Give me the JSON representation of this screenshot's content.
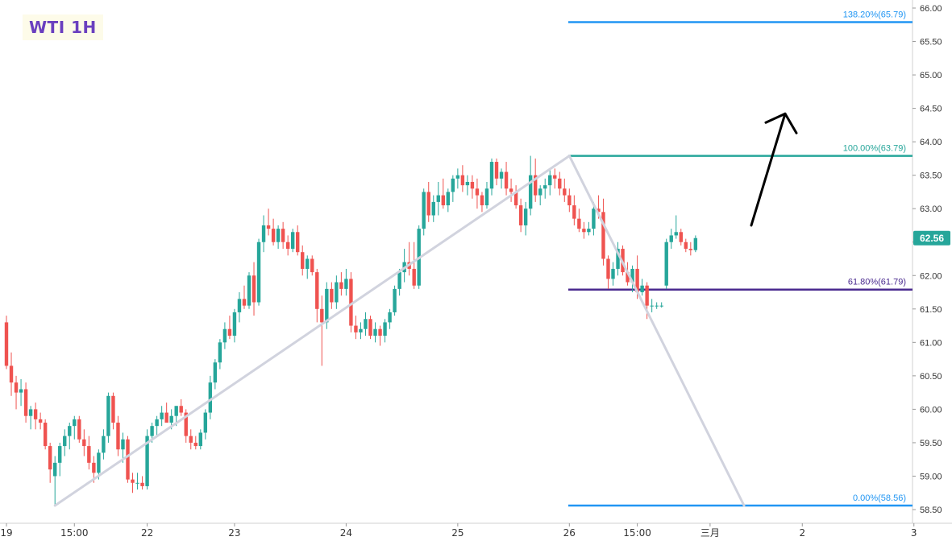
{
  "colors": {
    "up": "#26a69a",
    "down": "#ef5350",
    "title": "#6a3fbf",
    "fib_outer": "#2196f3",
    "fib_100": "#26a69a",
    "fib_618": "#4a2a8f",
    "trend": "#d1d3de",
    "arrow": "#000000",
    "price_tag": "#26a69a",
    "axis_text": "#333333"
  },
  "chart_data": {
    "type": "candlestick",
    "title": "WTI 1H",
    "y_axis": {
      "range": [
        58.25,
        66.1
      ],
      "ticks": [
        "66.00",
        "65.50",
        "65.00",
        "64.50",
        "64.00",
        "63.50",
        "63.00",
        "62.50",
        "62.00",
        "61.50",
        "61.00",
        "60.50",
        "60.00",
        "59.50",
        "59.00",
        "58.50"
      ],
      "side": "right"
    },
    "x_axis": {
      "ticks": [
        {
          "label": "19",
          "bar": 0
        },
        {
          "label": "15:00",
          "bar": 14
        },
        {
          "label": "22",
          "bar": 29
        },
        {
          "label": "23",
          "bar": 47
        },
        {
          "label": "24",
          "bar": 70
        },
        {
          "label": "25",
          "bar": 93
        },
        {
          "label": "26",
          "bar": 116
        },
        {
          "label": "15:00",
          "bar": 130
        },
        {
          "label": "三月",
          "bar": 145
        },
        {
          "label": "2",
          "bar": 164
        },
        {
          "label": "3",
          "bar": 187
        }
      ]
    },
    "last_price": 62.56,
    "fib_levels": [
      {
        "label": "138.20%(65.79)",
        "value": 65.79
      },
      {
        "label": "100.00%(63.79)",
        "value": 63.79
      },
      {
        "label": "61.80%(61.79)",
        "value": 61.79
      },
      {
        "label": "0.00%(58.56)",
        "value": 58.56
      }
    ],
    "trend_lines": [
      {
        "from": {
          "bar": 10,
          "price": 58.56
        },
        "to": {
          "bar": 116,
          "price": 63.79
        }
      },
      {
        "from": {
          "bar": 116,
          "price": 63.79
        },
        "to": {
          "bar": 152,
          "price": 58.56
        }
      }
    ],
    "arrow": {
      "from": {
        "bar": 154,
        "price": 62.75
      },
      "to": {
        "bar": 160,
        "price": 64.42
      }
    },
    "candles": [
      [
        61.3,
        61.4,
        60.6,
        60.65
      ],
      [
        60.65,
        60.85,
        60.2,
        60.4
      ],
      [
        60.4,
        60.5,
        60.0,
        60.25
      ],
      [
        60.25,
        60.45,
        60.05,
        60.3
      ],
      [
        60.3,
        60.4,
        59.8,
        59.9
      ],
      [
        59.9,
        60.05,
        59.7,
        60.0
      ],
      [
        60.0,
        60.1,
        59.7,
        59.85
      ],
      [
        59.85,
        59.95,
        59.7,
        59.8
      ],
      [
        59.8,
        59.85,
        59.4,
        59.45
      ],
      [
        59.45,
        59.5,
        58.9,
        59.1
      ],
      [
        59.0,
        59.3,
        58.56,
        59.2
      ],
      [
        59.2,
        59.5,
        59.0,
        59.45
      ],
      [
        59.45,
        59.7,
        59.3,
        59.6
      ],
      [
        59.6,
        59.8,
        59.4,
        59.75
      ],
      [
        59.75,
        59.9,
        59.55,
        59.85
      ],
      [
        59.85,
        59.9,
        59.5,
        59.55
      ],
      [
        59.55,
        59.7,
        59.3,
        59.45
      ],
      [
        59.45,
        59.6,
        59.1,
        59.2
      ],
      [
        59.2,
        59.3,
        58.9,
        59.05
      ],
      [
        59.05,
        59.4,
        58.95,
        59.35
      ],
      [
        59.35,
        59.7,
        59.25,
        59.6
      ],
      [
        59.6,
        60.25,
        59.5,
        60.2
      ],
      [
        60.2,
        60.25,
        59.7,
        59.8
      ],
      [
        59.8,
        59.9,
        59.3,
        59.4
      ],
      [
        59.4,
        59.65,
        59.2,
        59.55
      ],
      [
        59.55,
        59.6,
        58.9,
        58.95
      ],
      [
        58.95,
        59.05,
        58.75,
        58.9
      ],
      [
        58.9,
        59.05,
        58.8,
        58.9
      ],
      [
        58.9,
        59.0,
        58.8,
        58.85
      ],
      [
        58.85,
        59.7,
        58.8,
        59.6
      ],
      [
        59.6,
        59.8,
        59.5,
        59.75
      ],
      [
        59.75,
        59.9,
        59.6,
        59.85
      ],
      [
        59.85,
        60.05,
        59.75,
        59.95
      ],
      [
        59.95,
        60.1,
        59.8,
        59.8
      ],
      [
        59.8,
        60.0,
        59.7,
        59.9
      ],
      [
        59.9,
        60.05,
        59.75,
        60.05
      ],
      [
        60.05,
        60.15,
        59.9,
        59.95
      ],
      [
        59.95,
        60.0,
        59.5,
        59.6
      ],
      [
        59.6,
        59.7,
        59.4,
        59.5
      ],
      [
        59.5,
        59.6,
        59.4,
        59.45
      ],
      [
        59.45,
        59.7,
        59.4,
        59.65
      ],
      [
        59.65,
        60.0,
        59.55,
        59.95
      ],
      [
        59.95,
        60.5,
        59.85,
        60.4
      ],
      [
        60.4,
        60.75,
        60.3,
        60.7
      ],
      [
        60.7,
        61.05,
        60.6,
        61.0
      ],
      [
        61.0,
        61.3,
        60.9,
        61.2
      ],
      [
        61.2,
        61.4,
        61.05,
        61.1
      ],
      [
        61.1,
        61.5,
        61.0,
        61.45
      ],
      [
        61.45,
        61.75,
        61.3,
        61.65
      ],
      [
        61.65,
        61.85,
        61.5,
        61.55
      ],
      [
        61.55,
        62.05,
        61.5,
        62.0
      ],
      [
        62.0,
        62.2,
        61.4,
        61.6
      ],
      [
        61.6,
        62.55,
        61.55,
        62.5
      ],
      [
        62.5,
        62.9,
        62.35,
        62.75
      ],
      [
        62.75,
        63.0,
        62.6,
        62.7
      ],
      [
        62.7,
        62.85,
        62.45,
        62.5
      ],
      [
        62.5,
        62.75,
        62.4,
        62.7
      ],
      [
        62.7,
        62.8,
        62.4,
        62.5
      ],
      [
        62.5,
        62.6,
        62.3,
        62.4
      ],
      [
        62.4,
        62.7,
        62.35,
        62.65
      ],
      [
        62.65,
        62.75,
        62.3,
        62.35
      ],
      [
        62.35,
        62.45,
        62.0,
        62.1
      ],
      [
        62.1,
        62.3,
        61.95,
        62.25
      ],
      [
        62.25,
        62.3,
        62.0,
        62.05
      ],
      [
        62.05,
        62.1,
        61.3,
        61.5
      ],
      [
        61.5,
        61.7,
        60.65,
        61.3
      ],
      [
        61.3,
        61.9,
        61.2,
        61.8
      ],
      [
        61.8,
        61.9,
        61.5,
        61.6
      ],
      [
        61.6,
        62.0,
        61.5,
        61.9
      ],
      [
        61.9,
        62.05,
        61.7,
        61.8
      ],
      [
        61.8,
        62.1,
        61.7,
        61.95
      ],
      [
        61.95,
        62.05,
        61.15,
        61.25
      ],
      [
        61.25,
        61.4,
        61.05,
        61.15
      ],
      [
        61.15,
        61.3,
        61.05,
        61.2
      ],
      [
        61.2,
        61.45,
        61.1,
        61.35
      ],
      [
        61.35,
        61.4,
        61.05,
        61.1
      ],
      [
        61.1,
        61.3,
        61.0,
        61.2
      ],
      [
        61.2,
        61.25,
        60.95,
        61.1
      ],
      [
        61.1,
        61.35,
        61.0,
        61.3
      ],
      [
        61.3,
        61.5,
        61.2,
        61.45
      ],
      [
        61.45,
        61.85,
        61.4,
        61.8
      ],
      [
        61.8,
        62.1,
        61.7,
        62.05
      ],
      [
        62.05,
        62.4,
        61.9,
        62.2
      ],
      [
        62.2,
        62.5,
        62.0,
        62.1
      ],
      [
        62.1,
        62.5,
        61.8,
        61.85
      ],
      [
        61.85,
        62.75,
        61.8,
        62.7
      ],
      [
        62.7,
        63.3,
        62.6,
        63.25
      ],
      [
        63.25,
        63.4,
        62.8,
        62.9
      ],
      [
        62.9,
        63.2,
        62.8,
        63.1
      ],
      [
        63.1,
        63.4,
        62.9,
        63.2
      ],
      [
        63.2,
        63.45,
        63.0,
        63.05
      ],
      [
        63.05,
        63.3,
        62.95,
        63.25
      ],
      [
        63.25,
        63.5,
        63.1,
        63.45
      ],
      [
        63.45,
        63.6,
        63.3,
        63.5
      ],
      [
        63.5,
        63.65,
        63.25,
        63.35
      ],
      [
        63.35,
        63.5,
        63.2,
        63.4
      ],
      [
        63.4,
        63.5,
        63.15,
        63.3
      ],
      [
        63.3,
        63.45,
        63.0,
        63.2
      ],
      [
        63.2,
        63.25,
        62.95,
        63.05
      ],
      [
        63.05,
        63.4,
        63.0,
        63.3
      ],
      [
        63.3,
        63.75,
        63.2,
        63.7
      ],
      [
        63.7,
        63.75,
        63.35,
        63.45
      ],
      [
        63.45,
        63.6,
        63.3,
        63.55
      ],
      [
        63.55,
        63.7,
        63.2,
        63.3
      ],
      [
        63.3,
        63.45,
        63.1,
        63.25
      ],
      [
        63.25,
        63.35,
        63.0,
        63.05
      ],
      [
        63.05,
        63.15,
        62.65,
        62.75
      ],
      [
        62.75,
        63.1,
        62.6,
        63.0
      ],
      [
        63.0,
        63.79,
        62.9,
        63.5
      ],
      [
        63.5,
        63.75,
        63.1,
        63.2
      ],
      [
        63.2,
        63.35,
        63.05,
        63.3
      ],
      [
        63.3,
        63.45,
        63.15,
        63.35
      ],
      [
        63.35,
        63.6,
        63.2,
        63.5
      ],
      [
        63.5,
        63.6,
        63.3,
        63.45
      ],
      [
        63.45,
        63.55,
        63.2,
        63.3
      ],
      [
        63.3,
        63.45,
        63.1,
        63.2
      ],
      [
        63.2,
        63.3,
        62.95,
        63.05
      ],
      [
        63.05,
        63.2,
        62.75,
        62.85
      ],
      [
        62.85,
        63.0,
        62.65,
        62.7
      ],
      [
        62.7,
        62.8,
        62.55,
        62.65
      ],
      [
        62.65,
        62.8,
        62.6,
        62.7
      ],
      [
        62.7,
        63.1,
        62.6,
        63.0
      ],
      [
        63.0,
        63.2,
        62.85,
        62.95
      ],
      [
        62.95,
        63.15,
        62.15,
        62.25
      ],
      [
        62.25,
        62.3,
        61.8,
        61.95
      ],
      [
        61.95,
        62.2,
        61.85,
        62.1
      ],
      [
        62.1,
        62.5,
        62.0,
        62.4
      ],
      [
        62.4,
        62.45,
        62.0,
        62.05
      ],
      [
        62.05,
        62.2,
        61.85,
        61.9
      ],
      [
        61.9,
        62.15,
        61.75,
        62.1
      ],
      [
        62.1,
        62.3,
        61.65,
        61.75
      ],
      [
        61.75,
        61.95,
        61.7,
        61.85
      ],
      [
        61.85,
        61.9,
        61.35,
        61.55
      ],
      [
        61.55,
        61.65,
        61.45,
        61.55
      ],
      [
        61.55,
        61.6,
        61.5,
        61.55
      ],
      [
        61.55,
        61.6,
        61.52,
        61.55
      ],
      [
        61.85,
        62.55,
        61.8,
        62.5
      ],
      [
        62.5,
        62.7,
        62.4,
        62.6
      ],
      [
        62.6,
        62.9,
        62.55,
        62.65
      ],
      [
        62.65,
        62.7,
        62.45,
        62.5
      ],
      [
        62.5,
        62.55,
        62.35,
        62.4
      ],
      [
        62.4,
        62.5,
        62.3,
        62.38
      ],
      [
        62.38,
        62.6,
        62.35,
        62.56
      ]
    ]
  }
}
